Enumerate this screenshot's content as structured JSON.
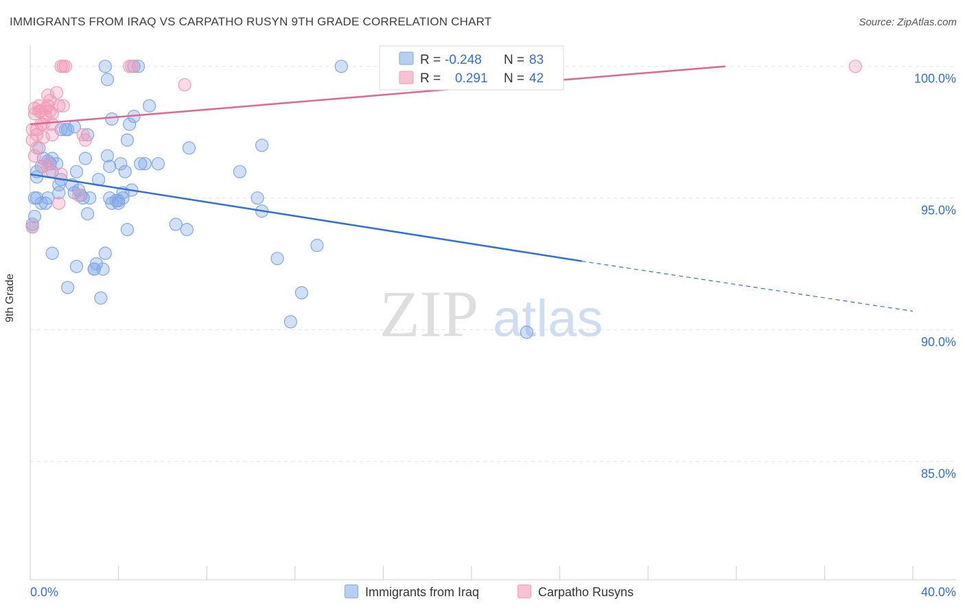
{
  "title": "IMMIGRANTS FROM IRAQ VS CARPATHO RUSYN 9TH GRADE CORRELATION CHART",
  "source": "Source: ZipAtlas.com",
  "watermark": {
    "zip": "ZIP",
    "atlas": "atlas"
  },
  "chart_data": {
    "type": "scatter",
    "ylabel": "9th Grade",
    "xlim": [
      0,
      40
    ],
    "ylim": [
      80.5,
      100.8
    ],
    "x_tick_labels": [
      "0.0%",
      "40.0%"
    ],
    "y_ticks": [
      {
        "value": 100,
        "label": "100.0%"
      },
      {
        "value": 95,
        "label": "95.0%"
      },
      {
        "value": 90,
        "label": "90.0%"
      },
      {
        "value": 85,
        "label": "85.0%"
      }
    ],
    "grid": "horizontal-dashed",
    "legend_placement": "top-center",
    "series": [
      {
        "name": "Immigrants from Iraq",
        "color": "#7ea7e8",
        "line_color": "#2f6fd6",
        "stats": {
          "r_label": "R = ",
          "r": "-0.248",
          "n_label": "N = ",
          "n": "83"
        },
        "trend": {
          "x0": 0,
          "y0": 95.9,
          "x1": 25,
          "y1": 92.6,
          "x_dash_end": 40,
          "y_dash_end": 90.7
        },
        "points": [
          [
            0.2,
            94.3
          ],
          [
            0.1,
            94.0
          ],
          [
            0.1,
            93.9
          ],
          [
            0.3,
            95.0
          ],
          [
            0.3,
            96.0
          ],
          [
            0.4,
            96.9
          ],
          [
            0.5,
            96.2
          ],
          [
            0.6,
            96.5
          ],
          [
            0.7,
            94.8
          ],
          [
            0.8,
            95.0
          ],
          [
            0.8,
            96.4
          ],
          [
            0.9,
            96.3
          ],
          [
            1.0,
            96.5
          ],
          [
            1.0,
            96.0
          ],
          [
            1.2,
            96.3
          ],
          [
            1.3,
            95.5
          ],
          [
            1.4,
            95.7
          ],
          [
            1.4,
            97.6
          ],
          [
            1.6,
            97.6
          ],
          [
            1.7,
            97.6
          ],
          [
            1.9,
            95.5
          ],
          [
            2.0,
            95.2
          ],
          [
            2.1,
            96.0
          ],
          [
            2.2,
            95.3
          ],
          [
            2.3,
            95.1
          ],
          [
            2.4,
            95.0
          ],
          [
            2.5,
            96.5
          ],
          [
            2.6,
            94.4
          ],
          [
            2.6,
            97.4
          ],
          [
            2.7,
            95.0
          ],
          [
            2.9,
            92.3
          ],
          [
            3.0,
            92.5
          ],
          [
            3.1,
            95.7
          ],
          [
            3.2,
            91.2
          ],
          [
            3.3,
            92.3
          ],
          [
            3.4,
            92.9
          ],
          [
            3.4,
            100.0
          ],
          [
            3.5,
            99.5
          ],
          [
            3.5,
            96.6
          ],
          [
            3.6,
            96.2
          ],
          [
            3.6,
            95.0
          ],
          [
            3.7,
            94.8
          ],
          [
            3.7,
            98.0
          ],
          [
            3.9,
            94.9
          ],
          [
            4.0,
            94.9
          ],
          [
            4.0,
            94.8
          ],
          [
            4.1,
            96.3
          ],
          [
            4.2,
            95.0
          ],
          [
            4.2,
            95.2
          ],
          [
            4.3,
            96.0
          ],
          [
            4.4,
            93.8
          ],
          [
            4.4,
            97.2
          ],
          [
            4.5,
            97.8
          ],
          [
            4.6,
            95.3
          ],
          [
            4.7,
            98.1
          ],
          [
            4.7,
            100.0
          ],
          [
            4.9,
            100.0
          ],
          [
            5.0,
            96.3
          ],
          [
            5.2,
            96.3
          ],
          [
            5.4,
            98.5
          ],
          [
            5.8,
            96.3
          ],
          [
            6.6,
            94.0
          ],
          [
            7.1,
            93.8
          ],
          [
            7.2,
            96.9
          ],
          [
            9.5,
            96.0
          ],
          [
            10.3,
            95.0
          ],
          [
            10.5,
            94.5
          ],
          [
            10.5,
            97.0
          ],
          [
            11.2,
            92.7
          ],
          [
            11.8,
            90.3
          ],
          [
            12.3,
            91.4
          ],
          [
            13.0,
            93.2
          ],
          [
            14.1,
            100.0
          ],
          [
            22.5,
            89.9
          ],
          [
            2.9,
            92.3
          ],
          [
            1.0,
            92.9
          ],
          [
            1.7,
            91.6
          ],
          [
            2.1,
            92.4
          ],
          [
            0.2,
            95.0
          ],
          [
            0.5,
            94.8
          ],
          [
            1.3,
            95.2
          ],
          [
            2.0,
            97.7
          ],
          [
            0.3,
            95.8
          ]
        ]
      },
      {
        "name": "Carpatho Rusyns",
        "color": "#f29ab6",
        "line_color": "#e0668f",
        "stats": {
          "r_label": "R = ",
          "r": "0.291",
          "n_label": "N = ",
          "n": "42"
        },
        "trend": {
          "x0": 0,
          "y0": 97.8,
          "x1": 31.5,
          "y1": 100.0
        },
        "points": [
          [
            0.1,
            93.9
          ],
          [
            0.1,
            97.2
          ],
          [
            0.1,
            97.6
          ],
          [
            0.2,
            98.2
          ],
          [
            0.2,
            98.4
          ],
          [
            0.3,
            97.6
          ],
          [
            0.3,
            97.4
          ],
          [
            0.3,
            96.9
          ],
          [
            0.4,
            98.3
          ],
          [
            0.4,
            98.5
          ],
          [
            0.5,
            97.8
          ],
          [
            0.5,
            98.3
          ],
          [
            0.6,
            97.8
          ],
          [
            0.6,
            97.3
          ],
          [
            0.7,
            98.4
          ],
          [
            0.7,
            98.1
          ],
          [
            0.8,
            98.9
          ],
          [
            0.8,
            98.5
          ],
          [
            0.8,
            96.3
          ],
          [
            0.9,
            96.0
          ],
          [
            0.9,
            98.7
          ],
          [
            1.0,
            97.8
          ],
          [
            1.0,
            97.4
          ],
          [
            1.0,
            98.2
          ],
          [
            1.2,
            99.0
          ],
          [
            1.3,
            98.5
          ],
          [
            1.4,
            100.0
          ],
          [
            1.5,
            100.0
          ],
          [
            1.5,
            98.5
          ],
          [
            1.6,
            100.0
          ],
          [
            1.3,
            94.8
          ],
          [
            2.4,
            97.4
          ],
          [
            2.5,
            97.2
          ],
          [
            4.5,
            100.0
          ],
          [
            4.6,
            100.0
          ],
          [
            7.0,
            99.3
          ],
          [
            37.4,
            100.0
          ],
          [
            0.2,
            96.6
          ],
          [
            0.6,
            96.2
          ],
          [
            0.9,
            98.3
          ],
          [
            2.2,
            95.1
          ],
          [
            1.4,
            95.9
          ]
        ]
      }
    ]
  }
}
